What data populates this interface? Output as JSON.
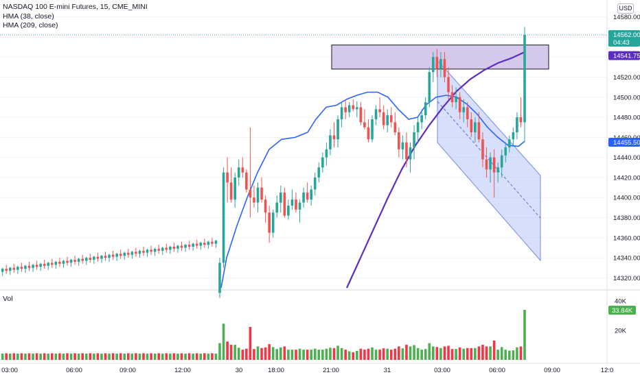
{
  "legend": {
    "symbol": "NASDAQ 100 E-mini Futures, 15, CME_MINI",
    "ind1": "HMA (38, close)",
    "ind2": "HMA (209, close)",
    "vol": "Vol"
  },
  "currency": "USD",
  "price_axis": {
    "ticks": [
      "14580.00",
      "14560.00",
      "14540.00",
      "14520.00",
      "14500.00",
      "14480.00",
      "14460.00",
      "14440.00",
      "14420.00",
      "14400.00",
      "14380.00",
      "14360.00",
      "14340.00",
      "14320.00"
    ],
    "labels": {
      "last_price": "14562.00",
      "countdown": "04:43",
      "hma209": "14541.75",
      "hma38": "14455.50"
    }
  },
  "volume_axis": {
    "ticks": [
      "40K",
      "20K"
    ],
    "last_label": "33.84K"
  },
  "time_axis": [
    "03:00",
    "06:00",
    "09:00",
    "12:00",
    "30",
    "18:00",
    "21:00",
    "31",
    "03:00",
    "06:00",
    "09:00",
    "12:0"
  ],
  "colors": {
    "up": "#26a69a",
    "down": "#ef5350",
    "vol_up": "#4caf50",
    "vol_down": "#f23645",
    "hma38": "#2962ff",
    "hma209": "#5b2dbf",
    "zone": "#b39ddb",
    "channel": "#90a4f0"
  },
  "chart_data": {
    "type": "candlestick",
    "price_range": [
      14310,
      14590
    ],
    "volume_range": [
      0,
      45000
    ],
    "time_labels": [
      "03:00",
      "06:00",
      "09:00",
      "12:00",
      "30",
      "18:00",
      "21:00",
      "31",
      "03:00",
      "06:00",
      "09:00",
      "12:0"
    ],
    "series": [
      {
        "name": "NASDAQ 100 E-mini Futures, 15, CME_MINI",
        "ohlc": [
          [
            14305,
            14312,
            14300,
            14310
          ],
          [
            14310,
            14319,
            14306,
            14316
          ],
          [
            14316,
            14320,
            14308,
            14311
          ],
          [
            14311,
            14316,
            14305,
            14314
          ],
          [
            14314,
            14318,
            14309,
            14312
          ],
          [
            14312,
            14317,
            14307,
            14315
          ],
          [
            14315,
            14319,
            14310,
            14313
          ],
          [
            14313,
            14318,
            14308,
            14316
          ],
          [
            14316,
            14320,
            14311,
            14314
          ],
          [
            14314,
            14318,
            14309,
            14317
          ],
          [
            14317,
            14321,
            14312,
            14315
          ],
          [
            14315,
            14319,
            14311,
            14318
          ],
          [
            14318,
            14322,
            14313,
            14316
          ],
          [
            14316,
            14320,
            14312,
            14319
          ],
          [
            14319,
            14324,
            14315,
            14317
          ],
          [
            14317,
            14321,
            14313,
            14320
          ],
          [
            14320,
            14324,
            14315,
            14318
          ],
          [
            14318,
            14322,
            14314,
            14321
          ],
          [
            14321,
            14325,
            14316,
            14319
          ],
          [
            14319,
            14323,
            14315,
            14322
          ],
          [
            14322,
            14326,
            14317,
            14320
          ],
          [
            14320,
            14324,
            14316,
            14323
          ],
          [
            14323,
            14327,
            14318,
            14321
          ],
          [
            14321,
            14325,
            14317,
            14324
          ],
          [
            14324,
            14328,
            14319,
            14322
          ],
          [
            14322,
            14326,
            14318,
            14325
          ],
          [
            14325,
            14329,
            14320,
            14323
          ],
          [
            14323,
            14327,
            14319,
            14326
          ],
          [
            14326,
            14330,
            14321,
            14324
          ],
          [
            14324,
            14328,
            14320,
            14327
          ],
          [
            14327,
            14331,
            14322,
            14325
          ],
          [
            14325,
            14329,
            14321,
            14328
          ],
          [
            14328,
            14332,
            14323,
            14326
          ],
          [
            14326,
            14330,
            14322,
            14329
          ],
          [
            14329,
            14333,
            14324,
            14327
          ],
          [
            14327,
            14331,
            14323,
            14330
          ],
          [
            14330,
            14334,
            14325,
            14328
          ],
          [
            14328,
            14332,
            14324,
            14331
          ],
          [
            14331,
            14335,
            14326,
            14329
          ],
          [
            14329,
            14333,
            14325,
            14332
          ],
          [
            14332,
            14336,
            14327,
            14330
          ],
          [
            14330,
            14334,
            14326,
            14333
          ],
          [
            14333,
            14337,
            14328,
            14331
          ],
          [
            14331,
            14335,
            14327,
            14334
          ],
          [
            14334,
            14338,
            14329,
            14332
          ],
          [
            14332,
            14336,
            14328,
            14335
          ],
          [
            14335,
            14339,
            14330,
            14333
          ],
          [
            14333,
            14337,
            14329,
            14336
          ],
          [
            14336,
            14340,
            14331,
            14334
          ],
          [
            14334,
            14338,
            14330,
            14337
          ],
          [
            14337,
            14341,
            14332,
            14335
          ],
          [
            14335,
            14339,
            14331,
            14338
          ],
          [
            14338,
            14342,
            14333,
            14336
          ],
          [
            14336,
            14340,
            14332,
            14339
          ],
          [
            14339,
            14343,
            14334,
            14337
          ],
          [
            14337,
            14341,
            14333,
            14340
          ],
          [
            14340,
            14344,
            14335,
            14338
          ],
          [
            14338,
            14342,
            14334,
            14341
          ],
          [
            14341,
            14345,
            14336,
            14339
          ],
          [
            14339,
            14343,
            14335,
            14342
          ],
          [
            14342,
            14346,
            14337,
            14340
          ],
          [
            14340,
            14344,
            14336,
            14343
          ],
          [
            14343,
            14347,
            14338,
            14341
          ],
          [
            14341,
            14345,
            14337,
            14344
          ],
          [
            14344,
            14348,
            14339,
            14342
          ],
          [
            14342,
            14346,
            14338,
            14345
          ],
          [
            14345,
            14349,
            14340,
            14343
          ],
          [
            14343,
            14347,
            14339,
            14346
          ],
          [
            14346,
            14350,
            14341,
            14344
          ],
          [
            14344,
            14348,
            14340,
            14347
          ],
          [
            14347,
            14351,
            14342,
            14345
          ],
          [
            14345,
            14349,
            14341,
            14348
          ],
          [
            14348,
            14352,
            14343,
            14346
          ],
          [
            14346,
            14350,
            14342,
            14349
          ],
          [
            14349,
            14353,
            14344,
            14347
          ],
          [
            14347,
            14351,
            14343,
            14350
          ],
          [
            14350,
            14354,
            14345,
            14348
          ],
          [
            14348,
            14352,
            14344,
            14351
          ],
          [
            14351,
            14355,
            14346,
            14349
          ],
          [
            14349,
            14353,
            14345,
            14352
          ],
          [
            14352,
            14356,
            14347,
            14350
          ],
          [
            14350,
            14354,
            14346,
            14353
          ],
          [
            14353,
            14357,
            14348,
            14351
          ],
          [
            14351,
            14355,
            14347,
            14354
          ],
          [
            14354,
            14358,
            14349,
            14352
          ],
          [
            14352,
            14356,
            14348,
            14355
          ],
          [
            14355,
            14359,
            14350,
            14353
          ],
          [
            14353,
            14357,
            14349,
            14356
          ],
          [
            14356,
            14360,
            14351,
            14354
          ],
          [
            14354,
            14358,
            14350,
            14357
          ],
          [
            14305,
            14340,
            14300,
            14335
          ],
          [
            14335,
            14430,
            14330,
            14425
          ],
          [
            14425,
            14440,
            14395,
            14415
          ],
          [
            14415,
            14430,
            14395,
            14398
          ],
          [
            14398,
            14425,
            14390,
            14420
          ],
          [
            14420,
            14438,
            14412,
            14430
          ],
          [
            14430,
            14440,
            14420,
            14425
          ],
          [
            14425,
            14428,
            14405,
            14408
          ],
          [
            14408,
            14470,
            14380,
            14400
          ],
          [
            14400,
            14412,
            14390,
            14395
          ],
          [
            14395,
            14415,
            14385,
            14410
          ],
          [
            14410,
            14420,
            14395,
            14398
          ],
          [
            14398,
            14402,
            14375,
            14385
          ],
          [
            14385,
            14392,
            14355,
            14365
          ],
          [
            14365,
            14388,
            14360,
            14385
          ],
          [
            14385,
            14402,
            14380,
            14395
          ],
          [
            14395,
            14412,
            14385,
            14405
          ],
          [
            14405,
            14410,
            14380,
            14382
          ],
          [
            14382,
            14398,
            14378,
            14392
          ],
          [
            14392,
            14408,
            14388,
            14398
          ],
          [
            14398,
            14405,
            14385,
            14388
          ],
          [
            14388,
            14398,
            14375,
            14395
          ],
          [
            14395,
            14410,
            14390,
            14405
          ],
          [
            14405,
            14415,
            14395,
            14398
          ],
          [
            14398,
            14412,
            14392,
            14408
          ],
          [
            14408,
            14425,
            14402,
            14420
          ],
          [
            14420,
            14435,
            14415,
            14430
          ],
          [
            14430,
            14445,
            14425,
            14440
          ],
          [
            14440,
            14455,
            14432,
            14448
          ],
          [
            14448,
            14468,
            14442,
            14462
          ],
          [
            14462,
            14475,
            14450,
            14458
          ],
          [
            14458,
            14482,
            14450,
            14478
          ],
          [
            14478,
            14495,
            14470,
            14490
          ],
          [
            14490,
            14498,
            14478,
            14485
          ],
          [
            14485,
            14495,
            14480,
            14492
          ],
          [
            14492,
            14498,
            14486,
            14488
          ],
          [
            14488,
            14496,
            14480,
            14490
          ],
          [
            14490,
            14495,
            14472,
            14475
          ],
          [
            14475,
            14488,
            14468,
            14470
          ],
          [
            14470,
            14478,
            14455,
            14458
          ],
          [
            14458,
            14482,
            14455,
            14478
          ],
          [
            14478,
            14492,
            14472,
            14488
          ],
          [
            14488,
            14500,
            14480,
            14485
          ],
          [
            14485,
            14492,
            14468,
            14472
          ],
          [
            14472,
            14488,
            14465,
            14482
          ],
          [
            14482,
            14490,
            14470,
            14475
          ],
          [
            14475,
            14485,
            14462,
            14465
          ],
          [
            14465,
            14470,
            14440,
            14448
          ],
          [
            14448,
            14462,
            14438,
            14455
          ],
          [
            14455,
            14465,
            14430,
            14438
          ],
          [
            14438,
            14455,
            14425,
            14450
          ],
          [
            14450,
            14472,
            14438,
            14465
          ],
          [
            14465,
            14480,
            14455,
            14475
          ],
          [
            14475,
            14488,
            14468,
            14482
          ],
          [
            14482,
            14500,
            14478,
            14495
          ],
          [
            14495,
            14530,
            14490,
            14525
          ],
          [
            14525,
            14545,
            14515,
            14540
          ],
          [
            14540,
            14548,
            14520,
            14528
          ],
          [
            14528,
            14545,
            14520,
            14538
          ],
          [
            14538,
            14545,
            14515,
            14520
          ],
          [
            14520,
            14530,
            14498,
            14505
          ],
          [
            14505,
            14512,
            14490,
            14495
          ],
          [
            14495,
            14510,
            14488,
            14500
          ],
          [
            14500,
            14505,
            14478,
            14485
          ],
          [
            14485,
            14498,
            14475,
            14490
          ],
          [
            14490,
            14495,
            14470,
            14478
          ],
          [
            14478,
            14485,
            14460,
            14465
          ],
          [
            14465,
            14480,
            14455,
            14475
          ],
          [
            14475,
            14485,
            14455,
            14458
          ],
          [
            14458,
            14465,
            14430,
            14438
          ],
          [
            14438,
            14450,
            14420,
            14428
          ],
          [
            14428,
            14445,
            14415,
            14440
          ],
          [
            14440,
            14448,
            14400,
            14425
          ],
          [
            14425,
            14435,
            14415,
            14430
          ],
          [
            14430,
            14448,
            14420,
            14442
          ],
          [
            14442,
            14455,
            14435,
            14450
          ],
          [
            14450,
            14462,
            14445,
            14458
          ],
          [
            14458,
            14470,
            14452,
            14465
          ],
          [
            14465,
            14485,
            14458,
            14480
          ],
          [
            14480,
            14500,
            14470,
            14475
          ],
          [
            14475,
            14570,
            14455,
            14562
          ]
        ]
      }
    ],
    "overlays": [
      {
        "name": "HMA (38, close)"
      },
      {
        "name": "HMA (209, close)"
      }
    ]
  }
}
